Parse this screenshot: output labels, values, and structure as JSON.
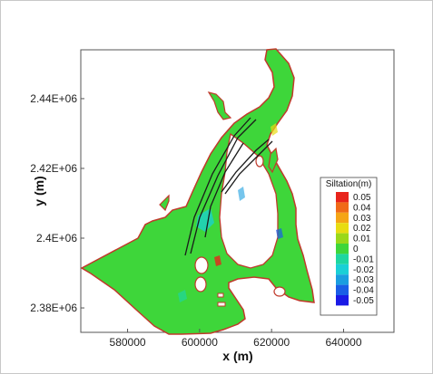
{
  "chart_data": {
    "type": "heatmap",
    "xlabel": "x (m)",
    "ylabel": "y (m)",
    "xlim": [
      567000,
      654000
    ],
    "ylim": [
      2373000,
      2454000
    ],
    "x_ticks": [
      {
        "value": 580000,
        "label": "580000"
      },
      {
        "value": 600000,
        "label": "600000"
      },
      {
        "value": 620000,
        "label": "620000"
      },
      {
        "value": 640000,
        "label": "640000"
      }
    ],
    "y_ticks": [
      {
        "value": 2380000,
        "label": "2.38E+06"
      },
      {
        "value": 2400000,
        "label": "2.4E+06"
      },
      {
        "value": 2420000,
        "label": "2.42E+06"
      },
      {
        "value": 2440000,
        "label": "2.44E+06"
      }
    ],
    "legend": {
      "title": "Siltation(m)",
      "placement": "right",
      "levels": [
        {
          "label": "0.05",
          "color": "#e8241c"
        },
        {
          "label": "0.04",
          "color": "#f06a18"
        },
        {
          "label": "0.03",
          "color": "#f5a516"
        },
        {
          "label": "0.02",
          "color": "#e8dc12"
        },
        {
          "label": "0.01",
          "color": "#9ad81a"
        },
        {
          "label": "0",
          "color": "#3ed63a"
        },
        {
          "label": "-0.01",
          "color": "#1ed6a0"
        },
        {
          "label": "-0.02",
          "color": "#1ad0d6"
        },
        {
          "label": "-0.03",
          "color": "#1a9ee0"
        },
        {
          "label": "-0.04",
          "color": "#1a5ee6"
        },
        {
          "label": "-0.05",
          "color": "#1a1ae6"
        }
      ]
    },
    "field_color": "#3ed63a",
    "boundary_color": "#c0392b",
    "channel_color": "#1a1a1a"
  }
}
